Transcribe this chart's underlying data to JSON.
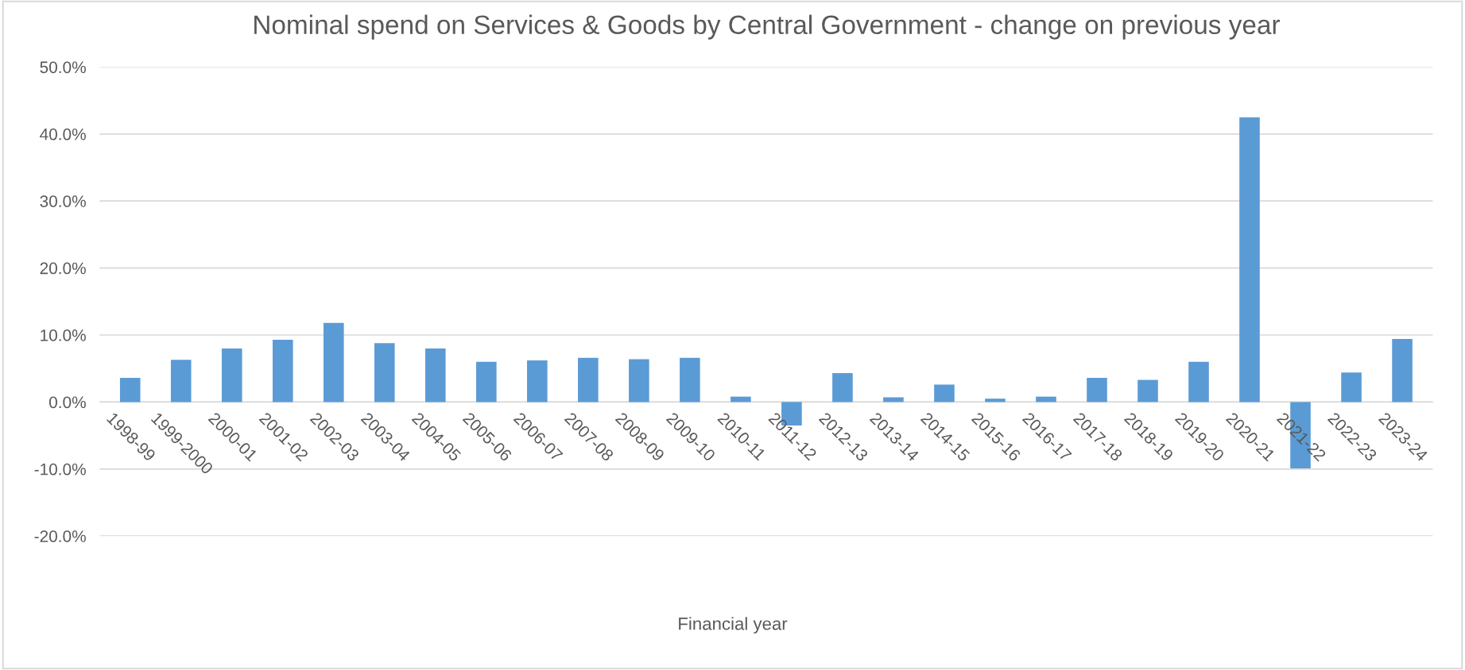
{
  "chart_data": {
    "type": "bar",
    "title": "Nominal spend on Services & Goods by Central Government - change on previous year",
    "xlabel": "Financial year",
    "categories": [
      "1998-99",
      "1999-2000",
      "2000-01",
      "2001-02",
      "2002-03",
      "2003-04",
      "2004-05",
      "2005-06",
      "2006-07",
      "2007-08",
      "2008-09",
      "2009-10",
      "2010-11",
      "2011-12",
      "2012-13",
      "2013-14",
      "2014-15",
      "2015-16",
      "2016-17",
      "2017-18",
      "2018-19",
      "2019-20",
      "2020-21",
      "2021-22",
      "2022-23",
      "2023-24"
    ],
    "series": [
      {
        "color": "#5b9bd5",
        "values": [
          3.6,
          6.3,
          8.0,
          9.3,
          11.8,
          8.8,
          8.0,
          6.0,
          6.2,
          6.6,
          6.4,
          6.6,
          0.8,
          -3.5,
          4.3,
          0.7,
          2.6,
          0.5,
          0.8,
          3.6,
          3.3,
          6.0,
          42.5,
          -9.9,
          4.4,
          9.4
        ]
      }
    ],
    "ylim": [
      -20,
      50
    ],
    "yticks": [
      {
        "value": -20,
        "label": "-20.0%"
      },
      {
        "value": -10,
        "label": "-10.0%"
      },
      {
        "value": 0,
        "label": "0.0%"
      },
      {
        "value": 10,
        "label": "10.0%"
      },
      {
        "value": 20,
        "label": "20.0%"
      },
      {
        "value": 30,
        "label": "30.0%"
      },
      {
        "value": 40,
        "label": "40.0%"
      },
      {
        "value": 50,
        "label": "50.0%"
      }
    ],
    "grid": "y",
    "legend": false
  }
}
